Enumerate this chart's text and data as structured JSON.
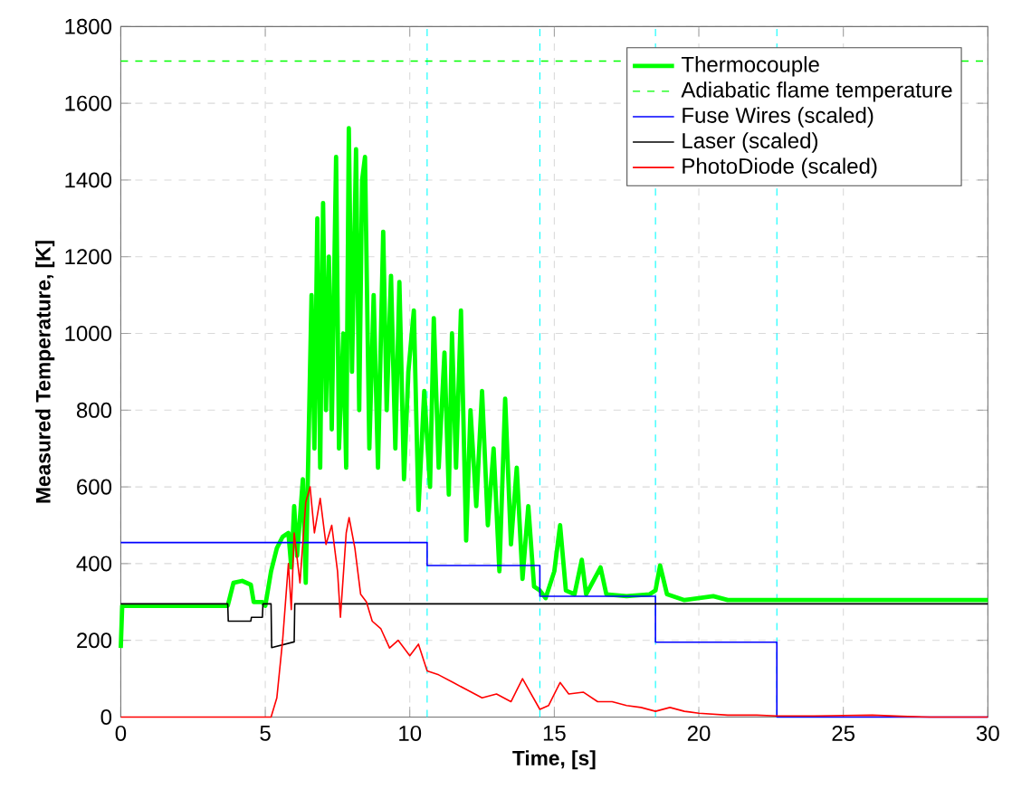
{
  "chart_data": {
    "type": "line",
    "xlabel": "Time, [s]",
    "ylabel": "Measured Temperature, [K]",
    "xlim": [
      0,
      30
    ],
    "ylim": [
      0,
      1800
    ],
    "xticks": [
      0,
      5,
      10,
      15,
      20,
      25,
      30
    ],
    "yticks": [
      0,
      200,
      400,
      600,
      800,
      1000,
      1200,
      1400,
      1600,
      1800
    ],
    "grid": true,
    "legend": "top right",
    "marker": "none",
    "series": [
      {
        "name": "Thermocouple",
        "color": "#00ff00",
        "x": [
          0,
          0.05,
          3.7,
          3.9,
          4.2,
          4.5,
          4.6,
          4.9,
          5.0,
          5.2,
          5.4,
          5.6,
          5.8,
          5.9,
          6.0,
          6.1,
          6.3,
          6.4,
          6.6,
          6.7,
          6.8,
          6.9,
          7.0,
          7.1,
          7.2,
          7.3,
          7.45,
          7.55,
          7.7,
          7.8,
          7.89,
          8.0,
          8.14,
          8.25,
          8.35,
          8.45,
          8.6,
          8.75,
          8.9,
          9.08,
          9.2,
          9.35,
          9.5,
          9.64,
          9.8,
          9.95,
          10.14,
          10.3,
          10.5,
          10.7,
          10.83,
          11.0,
          11.2,
          11.35,
          11.46,
          11.6,
          11.77,
          11.95,
          12.1,
          12.3,
          12.5,
          12.7,
          12.9,
          13.1,
          13.3,
          13.5,
          13.7,
          13.9,
          14.1,
          14.3,
          14.5,
          14.7,
          15.0,
          15.2,
          15.4,
          15.7,
          15.95,
          16.1,
          16.6,
          16.8,
          17.5,
          18.3,
          18.5,
          18.66,
          18.9,
          19.5,
          20.5,
          21,
          25,
          30
        ],
        "values": [
          180,
          290,
          290,
          350,
          355,
          345,
          300,
          300,
          290,
          380,
          440,
          470,
          480,
          390,
          550,
          420,
          620,
          350,
          1100,
          700,
          1300,
          650,
          1340,
          800,
          1200,
          750,
          1460,
          700,
          1000,
          650,
          1535,
          900,
          1480,
          800,
          1400,
          1460,
          700,
          1100,
          650,
          1265,
          800,
          1150,
          700,
          1134,
          620,
          900,
          1060,
          540,
          850,
          600,
          1040,
          650,
          950,
          580,
          1000,
          650,
          1060,
          460,
          800,
          550,
          850,
          500,
          700,
          380,
          830,
          450,
          650,
          360,
          550,
          340,
          330,
          310,
          380,
          500,
          330,
          320,
          410,
          320,
          390,
          320,
          315,
          320,
          330,
          395,
          320,
          305,
          315,
          305,
          305,
          305
        ]
      },
      {
        "name": "Adiabatic flame temperature",
        "color": "#00ff00",
        "line_style": "dashed",
        "x": [
          0,
          30
        ],
        "values": [
          1710,
          1710
        ]
      },
      {
        "name": "Fuse Wires (scaled)",
        "color": "#0000ff",
        "type": "step",
        "x": [
          0,
          10.6,
          14.5,
          18.5,
          22.7,
          30
        ],
        "values": [
          455,
          395,
          315,
          195,
          0,
          0
        ]
      },
      {
        "name": "Laser (scaled)",
        "color": "#000000",
        "x": [
          0,
          3.7,
          3.72,
          4.5,
          4.52,
          4.9,
          4.92,
          5.2,
          5.22,
          6.0,
          6.02,
          30
        ],
        "values": [
          295,
          295,
          250,
          250,
          260,
          260,
          295,
          295,
          181,
          196,
          295,
          295
        ]
      },
      {
        "name": "PhotoDiode (scaled)",
        "color": "#ff0000",
        "x": [
          0,
          5.2,
          5.4,
          5.6,
          5.8,
          5.9,
          6.0,
          6.2,
          6.4,
          6.55,
          6.7,
          6.9,
          7.1,
          7.3,
          7.5,
          7.6,
          7.8,
          7.9,
          8.1,
          8.3,
          8.5,
          8.7,
          9.0,
          9.3,
          9.6,
          10.0,
          10.3,
          10.6,
          11,
          11.5,
          12,
          12.5,
          13,
          13.5,
          13.9,
          14.2,
          14.5,
          14.8,
          15.2,
          15.5,
          16,
          16.5,
          17,
          17.5,
          18,
          18.5,
          19,
          19.5,
          20,
          21,
          22,
          22.7,
          24,
          26,
          27,
          28,
          30
        ],
        "values": [
          0,
          0,
          50,
          200,
          400,
          280,
          480,
          350,
          560,
          600,
          480,
          570,
          450,
          500,
          380,
          260,
          480,
          520,
          440,
          320,
          300,
          250,
          230,
          180,
          200,
          160,
          190,
          120,
          110,
          90,
          70,
          50,
          60,
          40,
          100,
          60,
          20,
          30,
          90,
          60,
          65,
          40,
          40,
          30,
          25,
          15,
          25,
          15,
          10,
          5,
          5,
          3,
          3,
          5,
          2,
          0,
          0
        ]
      }
    ],
    "ref_lines": [
      {
        "axis": "x",
        "value": 10.6,
        "color": "#00ffff",
        "line_style": "dashed"
      },
      {
        "axis": "x",
        "value": 14.5,
        "color": "#00ffff",
        "line_style": "dashed"
      },
      {
        "axis": "x",
        "value": 18.5,
        "color": "#00ffff",
        "line_style": "dashed"
      },
      {
        "axis": "x",
        "value": 22.7,
        "color": "#00ffff",
        "line_style": "dashed"
      }
    ]
  }
}
